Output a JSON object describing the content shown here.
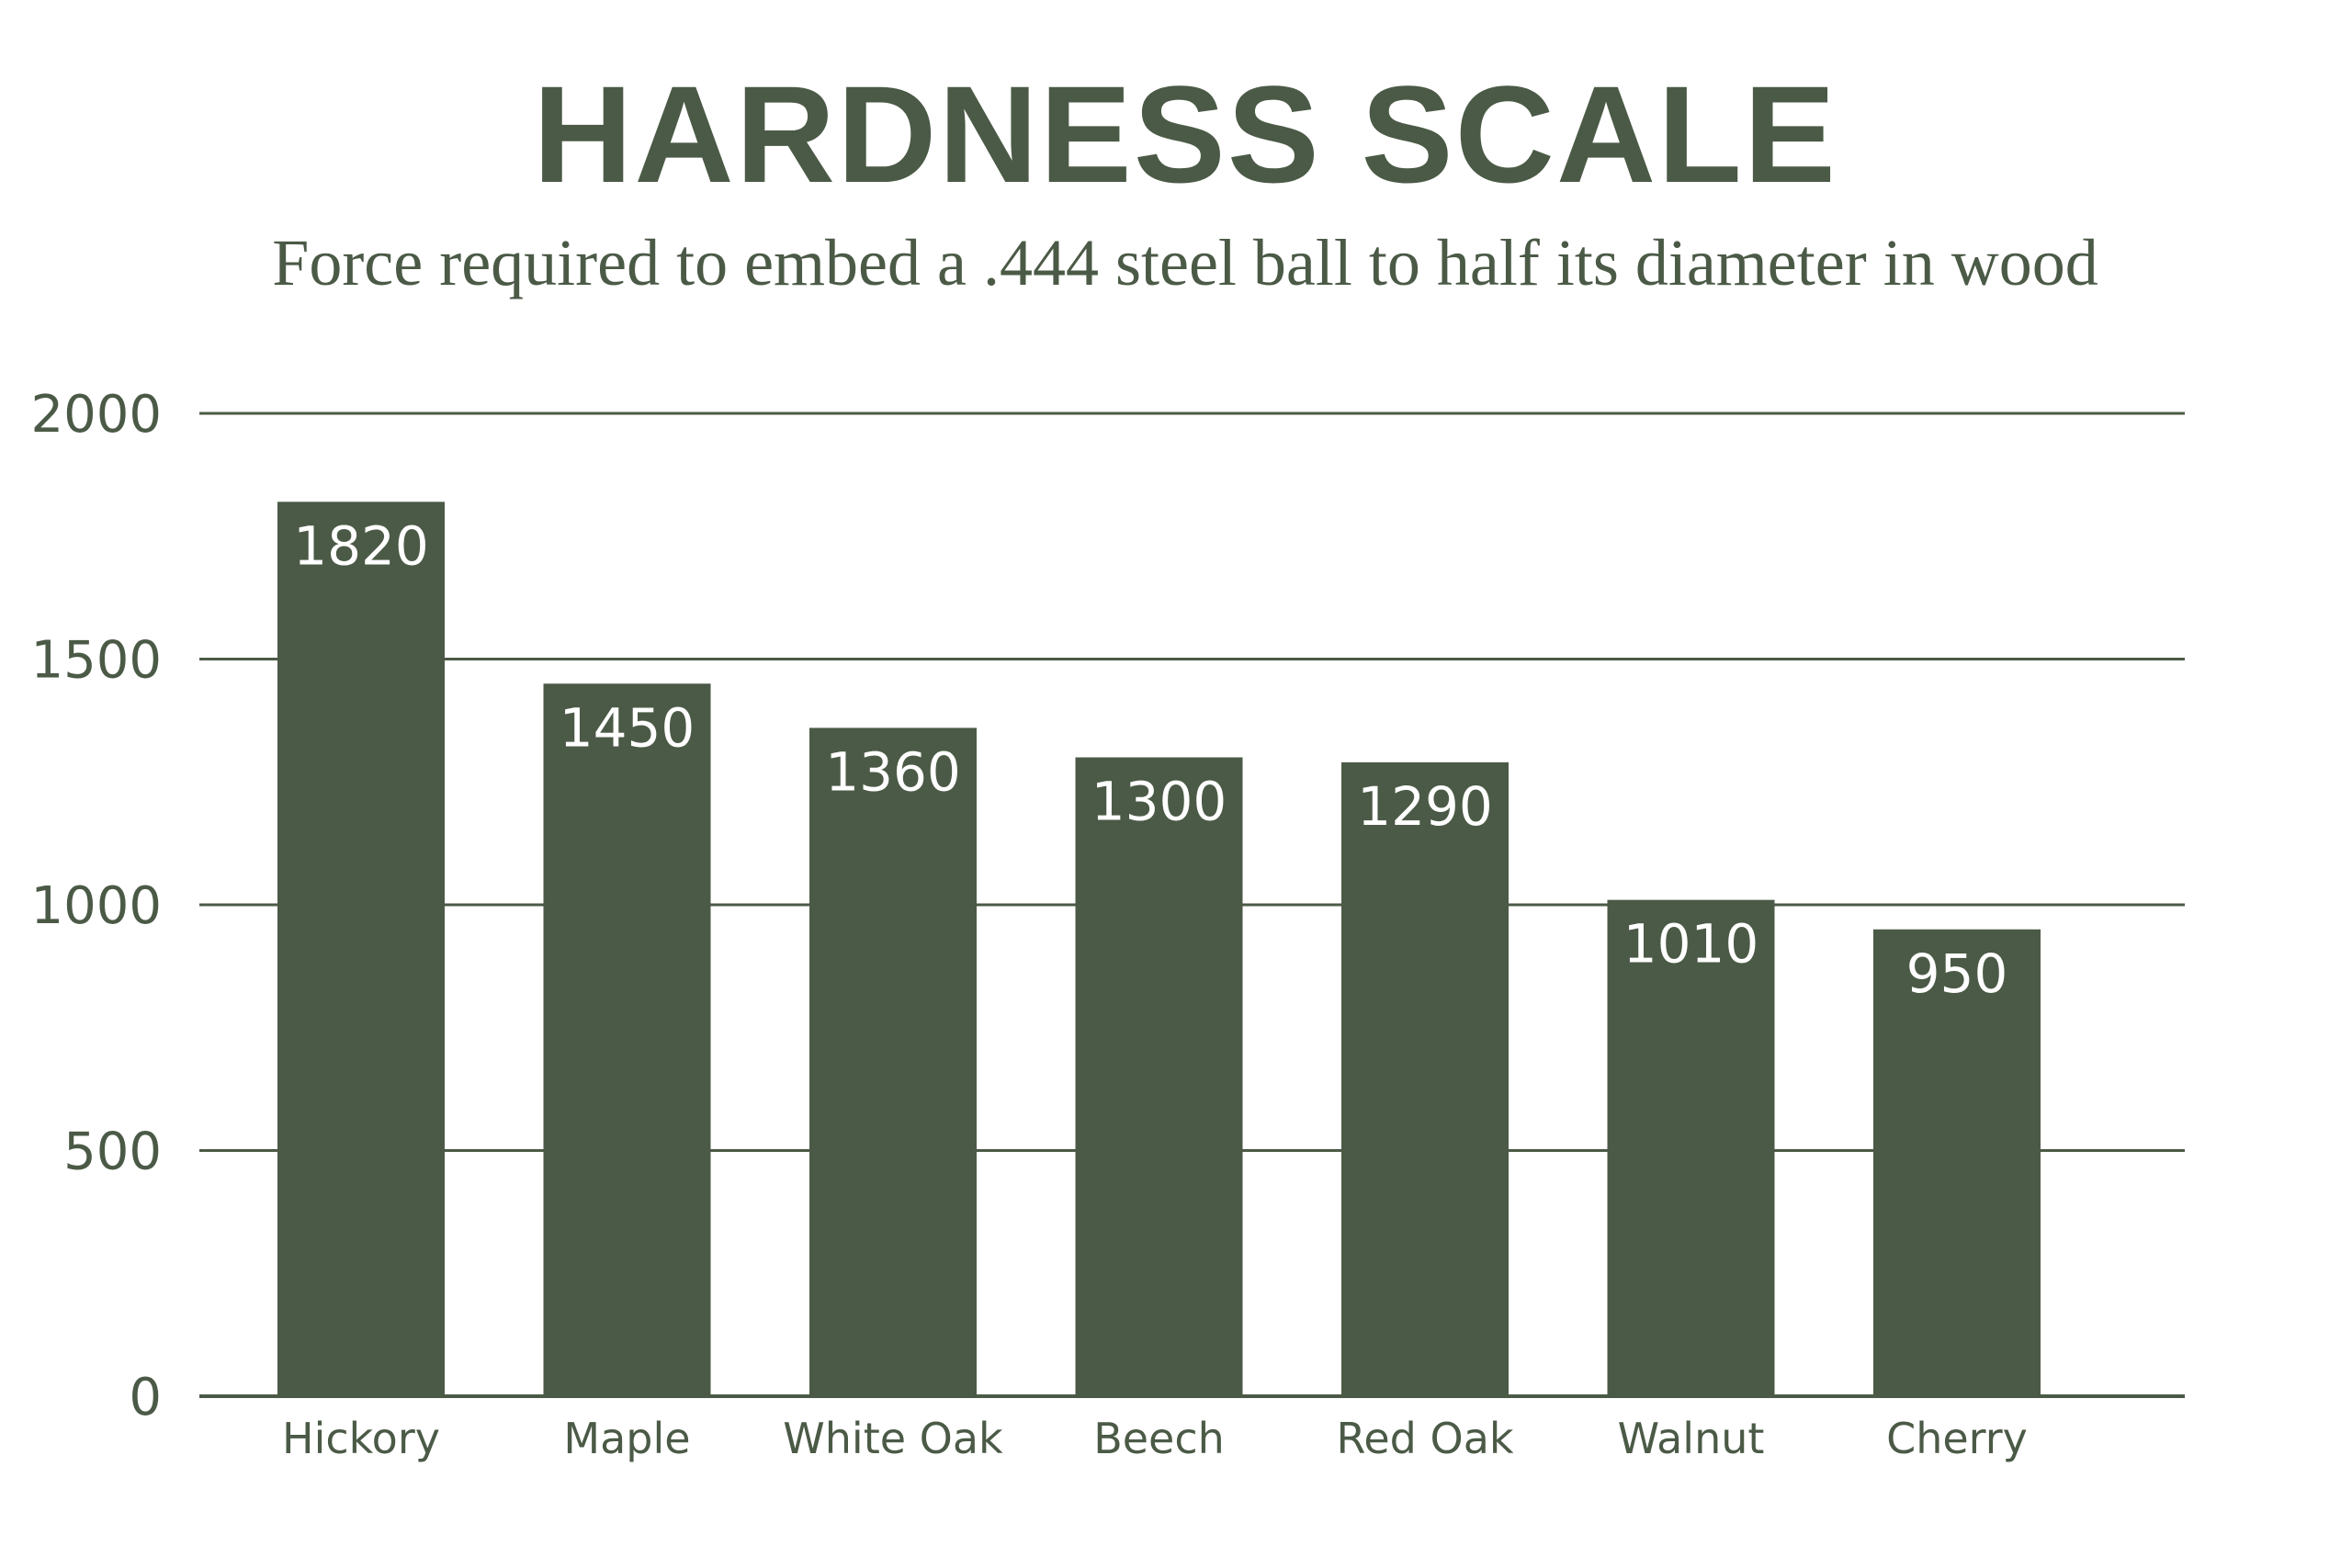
{
  "colors": {
    "bar": "#4b5a46",
    "text": "#4b5a46",
    "grid": "#4b5a46",
    "value_label": "#ffffff",
    "background": "#ffffff"
  },
  "chart_data": {
    "type": "bar",
    "title": "HARDNESS SCALE",
    "subtitle": "Force required to embed a .444 steel ball to half its diameter in wood",
    "xlabel": "",
    "ylabel": "",
    "categories": [
      "Hickory",
      "Maple",
      "White Oak",
      "Beech",
      "Red Oak",
      "Walnut",
      "Cherry"
    ],
    "values": [
      1820,
      1450,
      1360,
      1300,
      1290,
      1010,
      950
    ],
    "value_labels": [
      "1820",
      "1450",
      "1360",
      "1300",
      "1290",
      "1010",
      "950"
    ],
    "ylim": [
      0,
      2000
    ],
    "yticks": [
      0,
      500,
      1000,
      1500,
      2000
    ],
    "ytick_labels": [
      "0",
      "500",
      "1000",
      "1500",
      "2000"
    ],
    "grid": true,
    "legend": "none"
  }
}
